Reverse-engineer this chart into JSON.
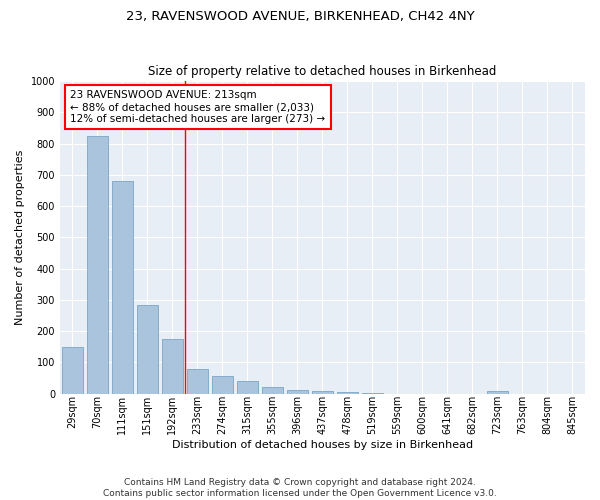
{
  "title": "23, RAVENSWOOD AVENUE, BIRKENHEAD, CH42 4NY",
  "subtitle": "Size of property relative to detached houses in Birkenhead",
  "xlabel": "Distribution of detached houses by size in Birkenhead",
  "ylabel": "Number of detached properties",
  "categories": [
    "29sqm",
    "70sqm",
    "111sqm",
    "151sqm",
    "192sqm",
    "233sqm",
    "274sqm",
    "315sqm",
    "355sqm",
    "396sqm",
    "437sqm",
    "478sqm",
    "519sqm",
    "559sqm",
    "600sqm",
    "641sqm",
    "682sqm",
    "723sqm",
    "763sqm",
    "804sqm",
    "845sqm"
  ],
  "values": [
    150,
    825,
    680,
    285,
    175,
    80,
    55,
    42,
    22,
    12,
    8,
    5,
    2,
    0,
    0,
    0,
    0,
    10,
    0,
    0,
    0
  ],
  "bar_color": "#aac4de",
  "bar_edge_color": "#6a9bbf",
  "annotation_text": "23 RAVENSWOOD AVENUE: 213sqm\n← 88% of detached houses are smaller (2,033)\n12% of semi-detached houses are larger (273) →",
  "annotation_box_color": "white",
  "annotation_box_edge_color": "red",
  "vline_color": "red",
  "ylim": [
    0,
    1000
  ],
  "yticks": [
    0,
    100,
    200,
    300,
    400,
    500,
    600,
    700,
    800,
    900,
    1000
  ],
  "background_color": "#e8eef5",
  "footer_text": "Contains HM Land Registry data © Crown copyright and database right 2024.\nContains public sector information licensed under the Open Government Licence v3.0.",
  "title_fontsize": 9.5,
  "subtitle_fontsize": 8.5,
  "xlabel_fontsize": 8,
  "ylabel_fontsize": 8,
  "tick_fontsize": 7,
  "annotation_fontsize": 7.5,
  "footer_fontsize": 6.5
}
